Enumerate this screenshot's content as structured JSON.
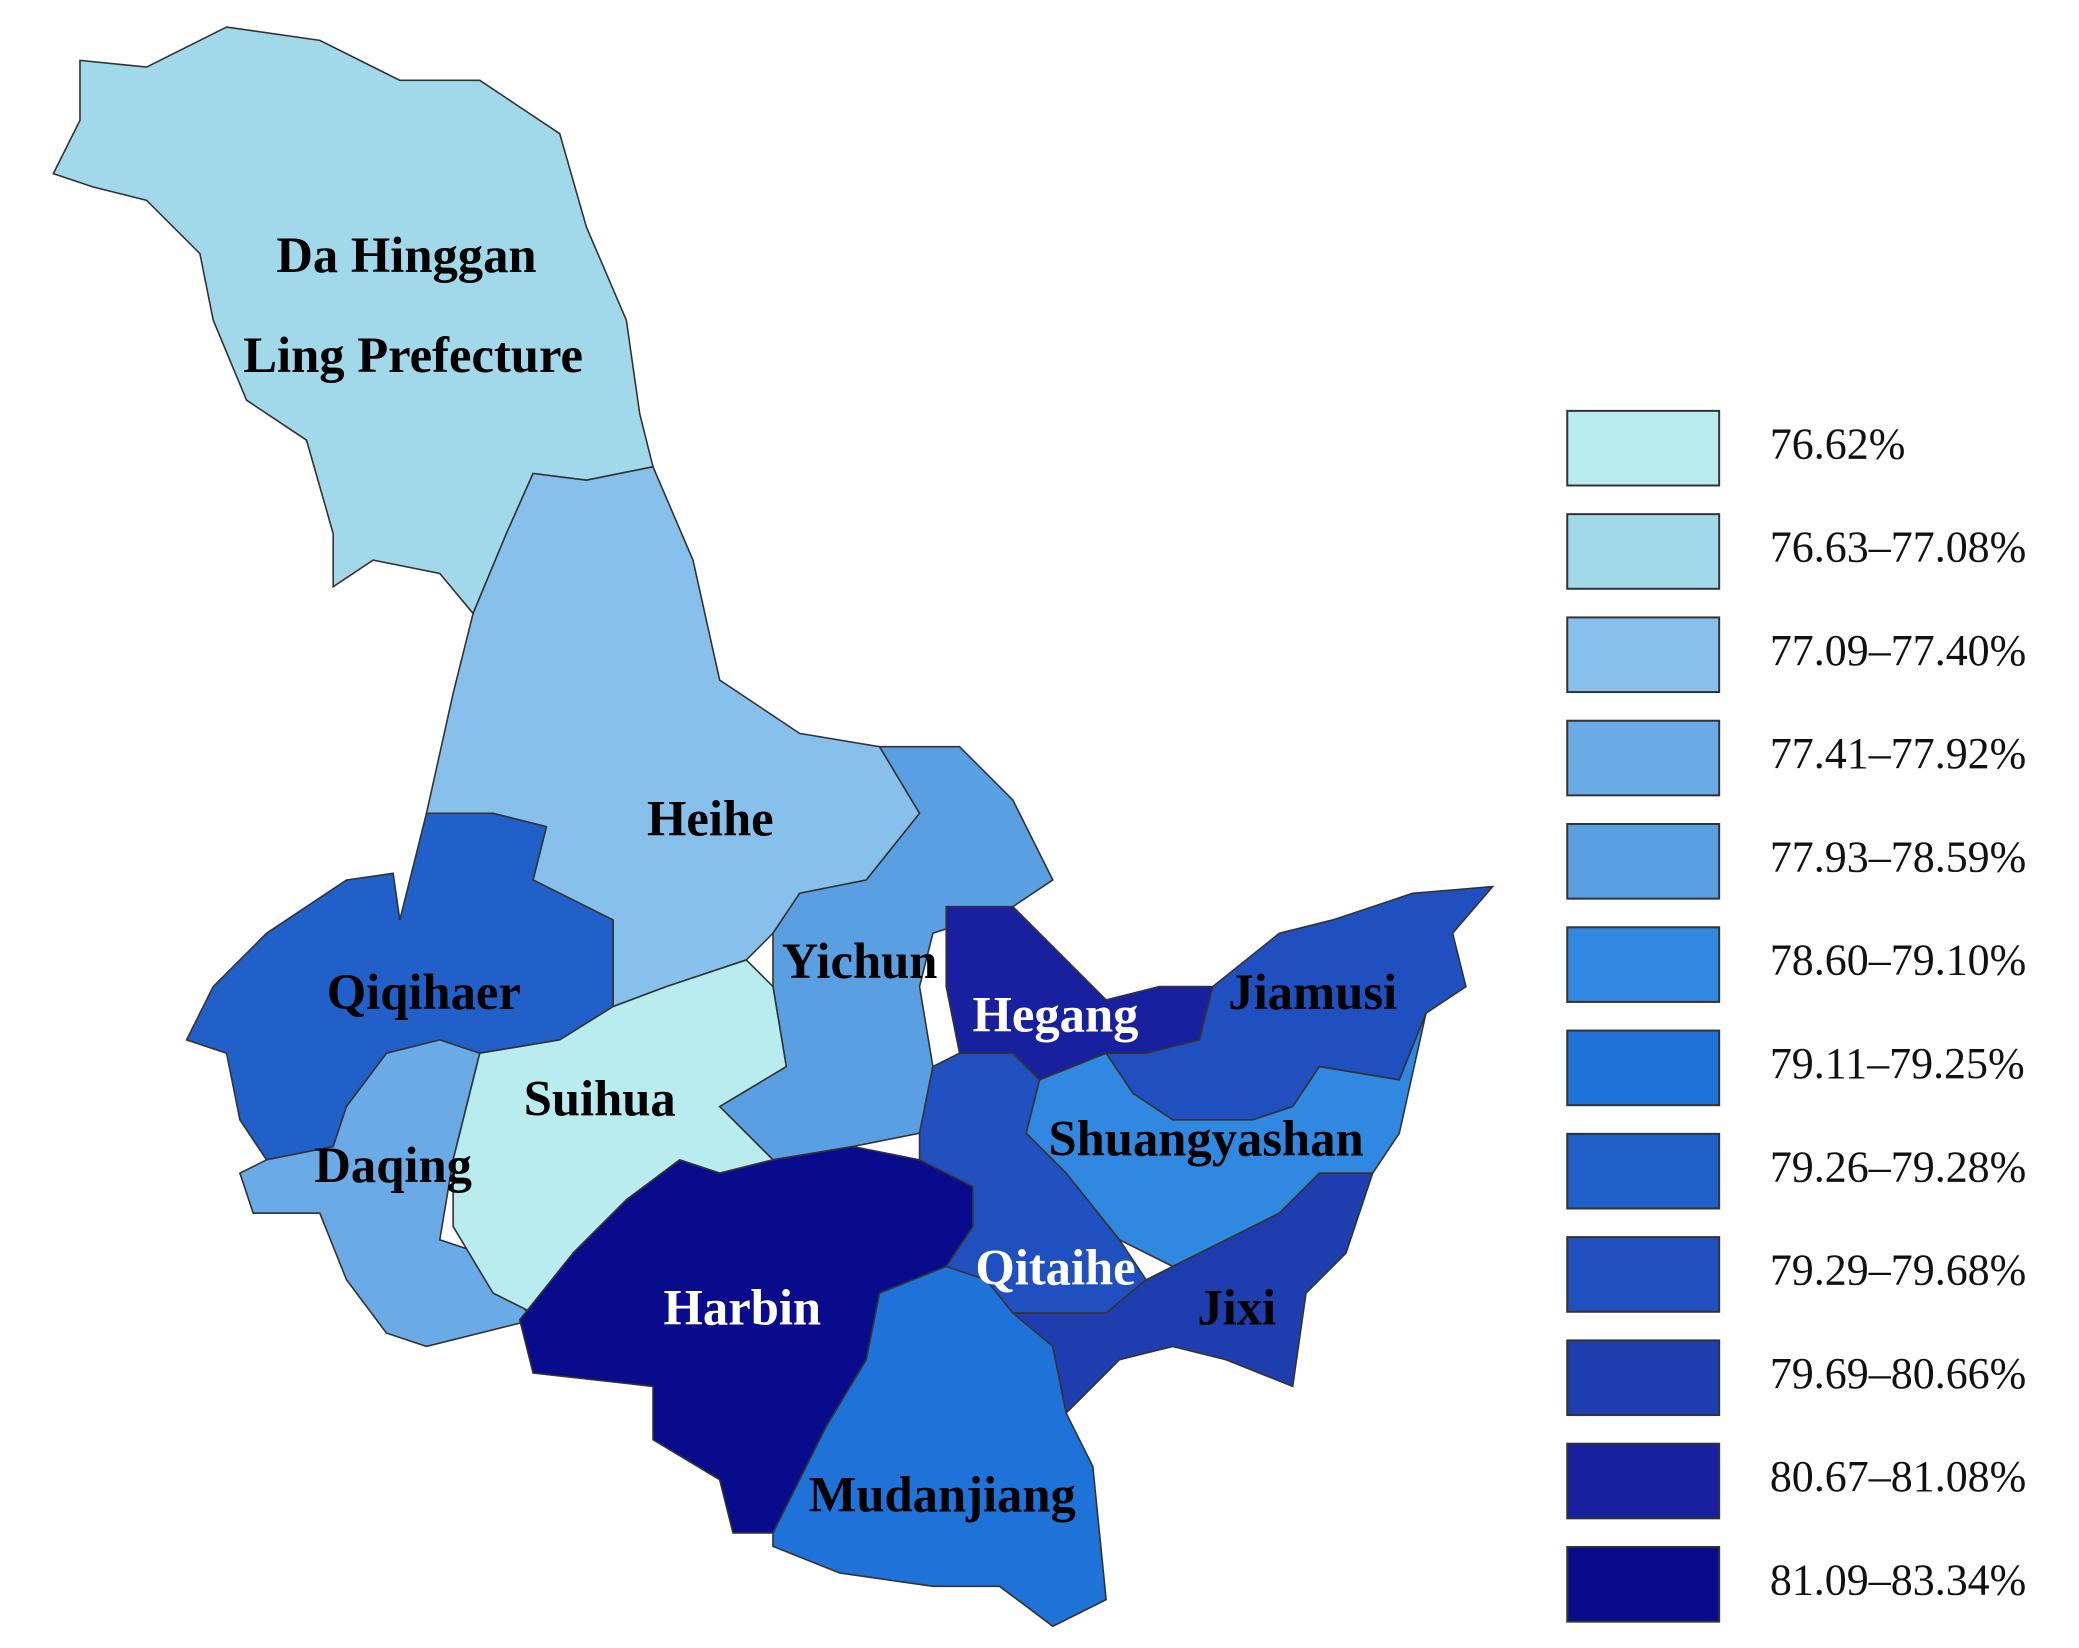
{
  "regions": [
    {
      "lines": [
        "Da Hinggan",
        "Ling Prefecture"
      ],
      "color": "#a1d8ea",
      "label_color": "#000000"
    },
    {
      "lines": [
        "Heihe"
      ],
      "color": "#88c0ec",
      "label_color": "#000000"
    },
    {
      "lines": [
        "Yichun"
      ],
      "color": "#5a9fe2",
      "label_color": "#000000"
    },
    {
      "lines": [
        "Qiqihaer"
      ],
      "color": "#2060c8",
      "label_color": "#000000"
    },
    {
      "lines": [
        "Daqing"
      ],
      "color": "#6aaae6",
      "label_color": "#000000"
    },
    {
      "lines": [
        "Suihua"
      ],
      "color": "#b8ecee",
      "label_color": "#000000"
    },
    {
      "lines": [
        "Harbin"
      ],
      "color": "#080c8c",
      "label_color": "#ffffff"
    },
    {
      "lines": [
        "Mudanjiang"
      ],
      "color": "#1e72d8",
      "label_color": "#000000"
    },
    {
      "lines": [
        "Hegang"
      ],
      "color": "#1820a0",
      "label_color": "#ffffff"
    },
    {
      "lines": [
        "Jiamusi"
      ],
      "color": "#2050c0",
      "label_color": "#000000"
    },
    {
      "lines": [
        "Shuangyashan"
      ],
      "color": "#3088e0",
      "label_color": "#000000"
    },
    {
      "lines": [
        "Qitaihe"
      ],
      "color": "#2050c0",
      "label_color": "#ffffff"
    },
    {
      "lines": [
        "Jixi"
      ],
      "color": "#1e3eb0",
      "label_color": "#000000"
    }
  ],
  "legend": [
    {
      "label": "76.62%",
      "color": "#b8ecee"
    },
    {
      "label": "76.63–77.08%",
      "color": "#a1d8ea"
    },
    {
      "label": "77.09–77.40%",
      "color": "#88c0ec"
    },
    {
      "label": "77.41–77.92%",
      "color": "#6aaae6"
    },
    {
      "label": "77.93–78.59%",
      "color": "#5a9fe2"
    },
    {
      "label": "78.60–79.10%",
      "color": "#3088e0"
    },
    {
      "label": "79.11–79.25%",
      "color": "#1e72d8"
    },
    {
      "label": "79.26–79.28%",
      "color": "#2060c8"
    },
    {
      "label": "79.29–79.68%",
      "color": "#2050c0"
    },
    {
      "label": "79.69–80.66%",
      "color": "#1e3eb0"
    },
    {
      "label": "80.67–81.08%",
      "color": "#1820a0"
    },
    {
      "label": "81.09–83.34%",
      "color": "#080c8c"
    }
  ]
}
